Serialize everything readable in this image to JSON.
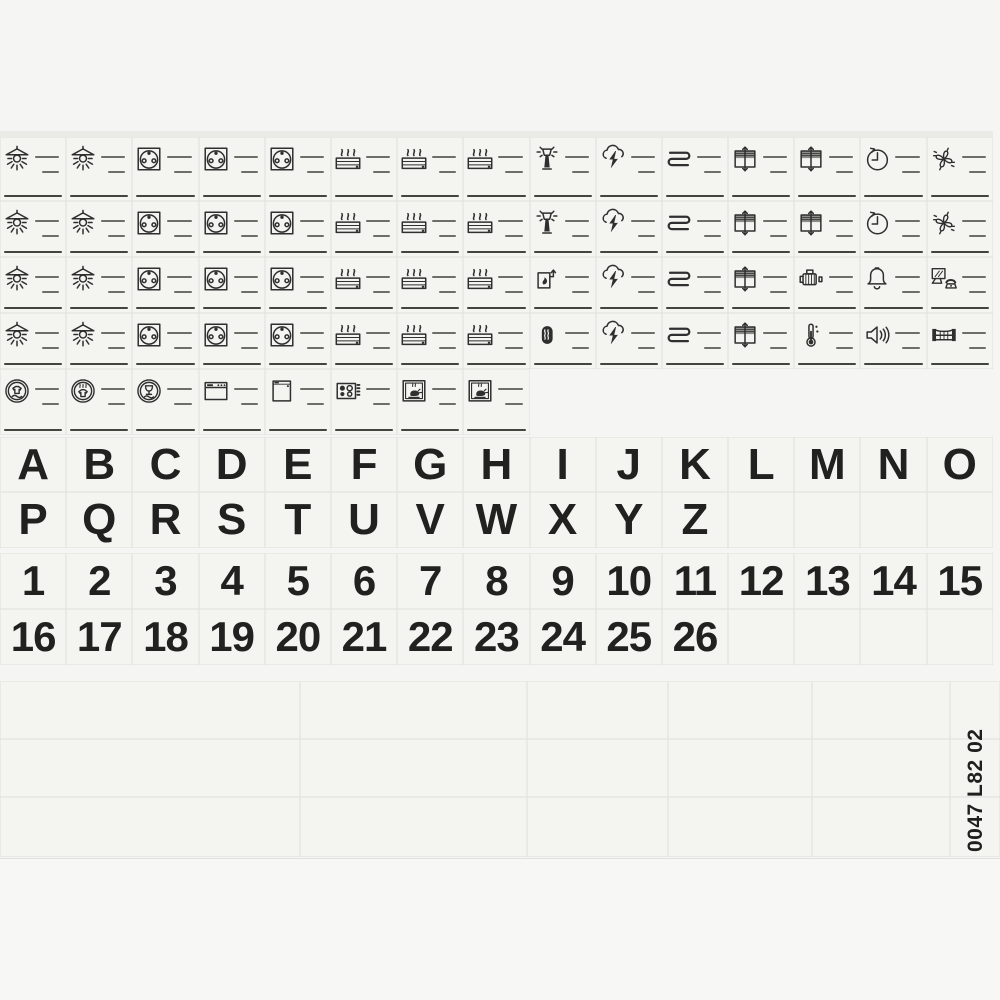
{
  "sheet": {
    "product_code": "0047 L82 02",
    "colors": {
      "ink": "#2f2f2f",
      "paper": "#f4f4f1",
      "backing": "#f5f5f3",
      "grid_line": "#e2e2de"
    },
    "icon_rows": [
      [
        "pendant-light",
        "pendant-light",
        "socket-outlet",
        "socket-outlet",
        "socket-outlet",
        "convector-heater",
        "convector-heater",
        "convector-heater",
        "outdoor-light",
        "storm-lightning",
        "heating-coil",
        "roller-shutter",
        "roller-shutter",
        "timer-clock",
        "ventilation-fan"
      ],
      [
        "pendant-light",
        "pendant-light",
        "socket-outlet",
        "socket-outlet",
        "socket-outlet",
        "convector-heater",
        "convector-heater",
        "convector-heater",
        "outdoor-light",
        "storm-lightning",
        "heating-coil",
        "roller-shutter",
        "roller-shutter",
        "timer-clock",
        "ventilation-fan"
      ],
      [
        "pendant-light",
        "pendant-light",
        "socket-outlet",
        "socket-outlet",
        "socket-outlet",
        "convector-heater",
        "convector-heater",
        "convector-heater",
        "water-heater",
        "storm-lightning",
        "heating-coil",
        "roller-shutter",
        "motor",
        "doorbell",
        "computer-phone"
      ],
      [
        "pendant-light",
        "pendant-light",
        "socket-outlet",
        "socket-outlet",
        "socket-outlet",
        "convector-heater",
        "convector-heater",
        "convector-heater",
        "storage-water-heater",
        "storm-lightning",
        "heating-coil",
        "roller-shutter",
        "thermometer",
        "loudspeaker",
        "gate"
      ],
      [
        "washing-machine",
        "tumble-dryer",
        "dishwasher",
        "oven",
        "refrigerator",
        "cooking-hob",
        "roast-oven",
        "roast-oven"
      ]
    ],
    "letter_rows": [
      [
        "A",
        "B",
        "C",
        "D",
        "E",
        "F",
        "G",
        "H",
        "I",
        "J",
        "K",
        "L",
        "M",
        "N",
        "O"
      ],
      [
        "P",
        "Q",
        "R",
        "S",
        "T",
        "U",
        "V",
        "W",
        "X",
        "Y",
        "Z",
        "",
        "",
        "",
        ""
      ]
    ],
    "number_rows": [
      [
        "1",
        "2",
        "3",
        "4",
        "5",
        "6",
        "7",
        "8",
        "9",
        "10",
        "11",
        "12",
        "13",
        "14",
        "15"
      ],
      [
        "16",
        "17",
        "18",
        "19",
        "20",
        "21",
        "22",
        "23",
        "24",
        "25",
        "26",
        "",
        "",
        "",
        ""
      ]
    ],
    "blank_section": {
      "rows": 3,
      "cells_per_row": 6
    }
  }
}
